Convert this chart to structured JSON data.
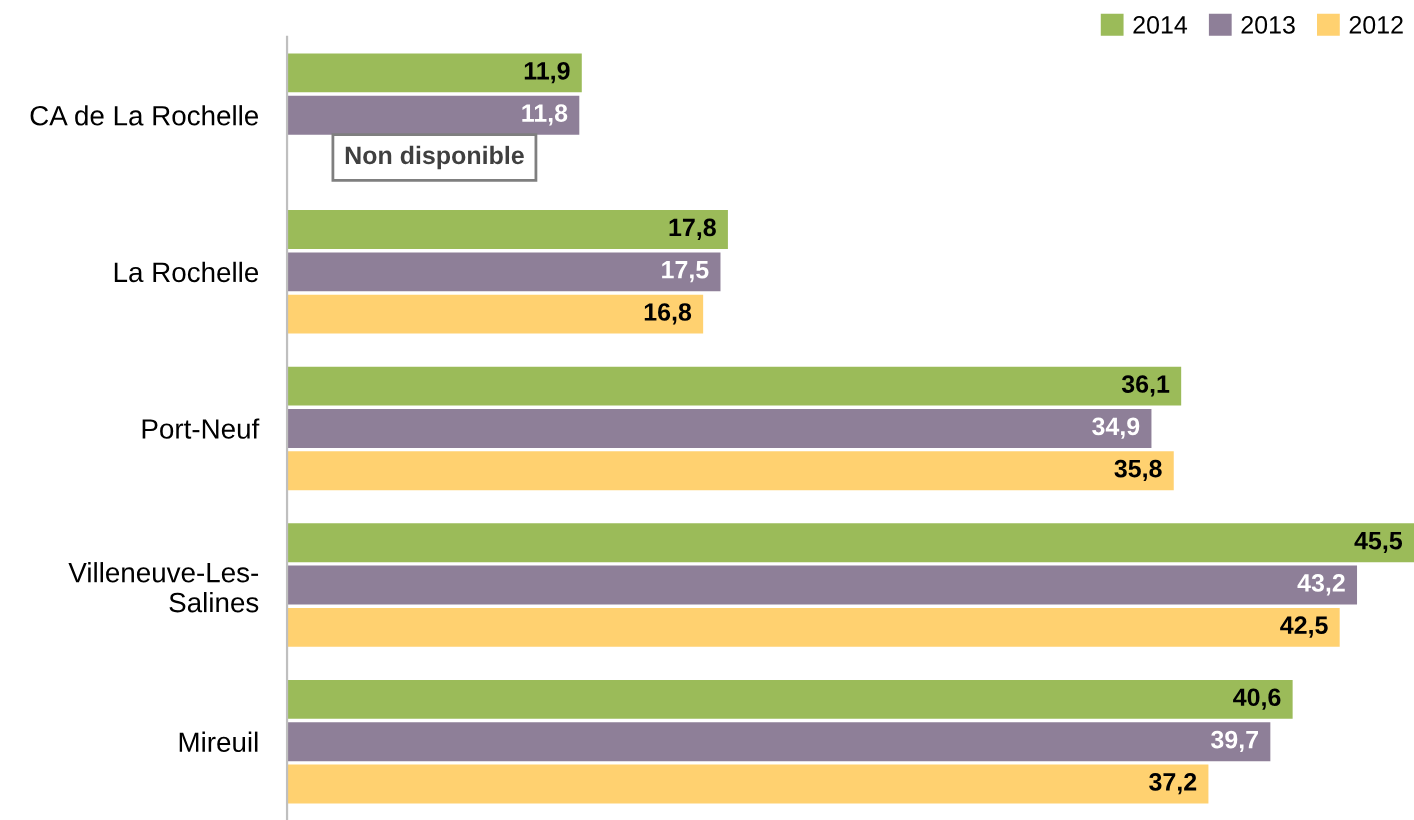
{
  "chart_data": {
    "type": "bar",
    "orientation": "horizontal",
    "categories": [
      "CA de La Rochelle",
      "La Rochelle",
      "Port-Neuf",
      "Villeneuve-Les-Salines",
      "Mireuil"
    ],
    "series": [
      {
        "name": "2014",
        "color": "#9bbb59",
        "values": [
          11.9,
          17.8,
          36.1,
          45.5,
          40.6
        ],
        "value_labels": [
          "11,9",
          "17,8",
          "36,1",
          "45,5",
          "40,6"
        ]
      },
      {
        "name": "2013",
        "color": "#8e7f98",
        "values": [
          11.8,
          17.5,
          34.9,
          43.2,
          39.7
        ],
        "value_labels": [
          "11,8",
          "17,5",
          "34,9",
          "43,2",
          "39,7"
        ]
      },
      {
        "name": "2012",
        "color": "#ffd170",
        "values": [
          null,
          16.8,
          35.8,
          42.5,
          37.2
        ],
        "value_labels": [
          "Non disponible",
          "16,8",
          "35,8",
          "42,5",
          "37,2"
        ]
      }
    ],
    "legend": "top right",
    "grid": false,
    "tick_labels": "y"
  }
}
